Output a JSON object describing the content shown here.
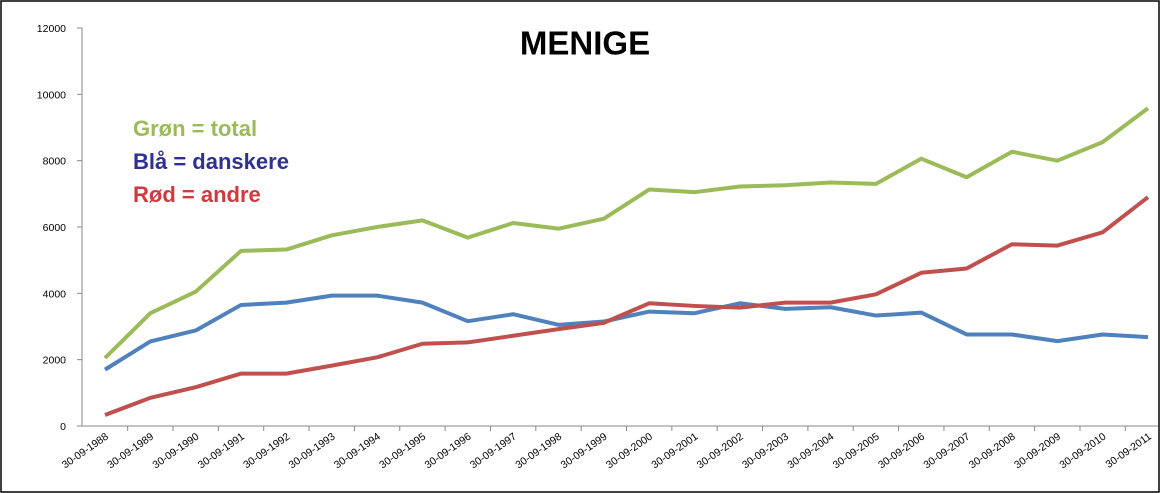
{
  "chart_data": {
    "type": "line",
    "title": "MENIGE",
    "categories": [
      "30-09-1988",
      "30-09-1989",
      "30-09-1990",
      "30-09-1991",
      "30-09-1992",
      "30-09-1993",
      "30-09-1994",
      "30-09-1995",
      "30-09-1996",
      "30-09-1997",
      "30-09-1998",
      "30-09-1999",
      "30-09-2000",
      "30-09-2001",
      "30-09-2002",
      "30-09-2003",
      "30-09-2004",
      "30-09-2005",
      "30-09-2006",
      "30-09-2007",
      "30-09-2008",
      "30-09-2009",
      "30-09-2010",
      "30-09-2011"
    ],
    "series": [
      {
        "name": "Grøn = total",
        "color": "#9bbb59",
        "label_color": "#9bbb59",
        "values": [
          2050,
          3400,
          4050,
          5280,
          5320,
          5750,
          6000,
          6200,
          5680,
          6120,
          5950,
          6250,
          7130,
          7050,
          7220,
          7260,
          7340,
          7300,
          8060,
          7500,
          8270,
          8000,
          8560,
          9580
        ]
      },
      {
        "name": "Blå = danskere",
        "color": "#4f81bd",
        "label_color": "#2e3192",
        "values": [
          1700,
          2550,
          2880,
          3650,
          3720,
          3930,
          3930,
          3720,
          3160,
          3370,
          3050,
          3150,
          3450,
          3400,
          3700,
          3530,
          3580,
          3330,
          3420,
          2760,
          2760,
          2560,
          2760,
          2680
        ]
      },
      {
        "name": "Rød = andre",
        "color": "#c0504d",
        "label_color": "#d0393e",
        "values": [
          330,
          850,
          1170,
          1580,
          1580,
          1820,
          2070,
          2480,
          2520,
          2720,
          2920,
          3110,
          3700,
          3620,
          3570,
          3720,
          3720,
          3970,
          4620,
          4750,
          5480,
          5440,
          5840,
          6900
        ]
      }
    ],
    "ylim": [
      0,
      12000
    ],
    "yticks": [
      0,
      2000,
      4000,
      6000,
      8000,
      10000,
      12000
    ],
    "grid": false
  }
}
